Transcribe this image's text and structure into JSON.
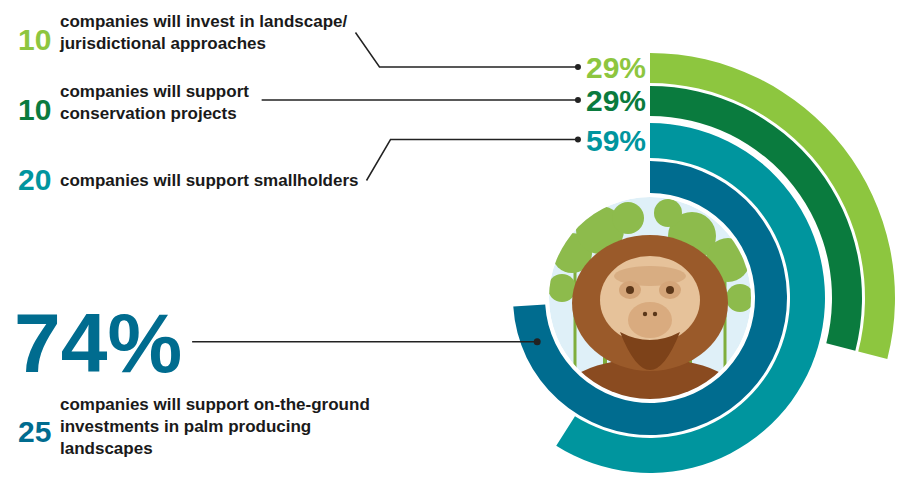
{
  "chart_data": {
    "type": "radial_bar",
    "categories": [
      "companies will invest in landscape/jurisdictional approaches",
      "companies will support conservation projects",
      "companies will support smallholders",
      "companies will support on-the-ground investments in palm producing landscapes"
    ],
    "counts": [
      10,
      10,
      20,
      25
    ],
    "values": [
      29,
      29,
      59,
      74
    ],
    "value_labels": [
      "29%",
      "29%",
      "59%",
      "74%"
    ],
    "colors": [
      "#8dc63f",
      "#0a7b3e",
      "#00959e",
      "#006c8f"
    ],
    "ylim": [
      0,
      100
    ],
    "tick_labels": false,
    "data_labels": true
  }
}
